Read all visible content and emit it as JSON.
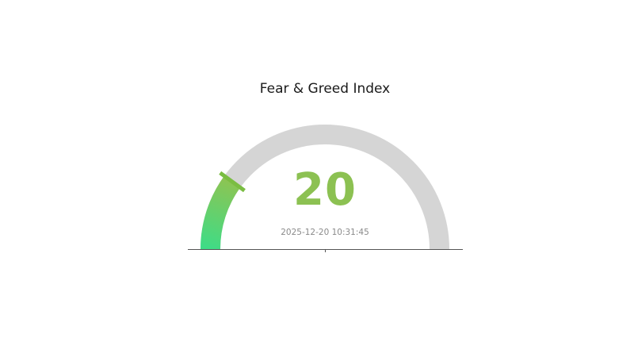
{
  "chart_data": {
    "type": "gauge",
    "title": "Fear & Greed Index",
    "value": 20,
    "min": 0,
    "max": 100,
    "sweep_degrees": 180,
    "filled_fraction": 0.2,
    "annotation": "2025-12-20 10:31:45",
    "legend": "none",
    "grid": false,
    "colors": {
      "track": "#d5d5d5",
      "fill_gradient_start": "#3fdc86",
      "fill_gradient_end": "#8cc453",
      "needle_tick": "#7abd42",
      "value_text": "#8cc152",
      "timestamp_text": "#8a8a8a",
      "title_text": "#1a1a1a",
      "baseline": "#555555",
      "background": "#ffffff"
    }
  }
}
